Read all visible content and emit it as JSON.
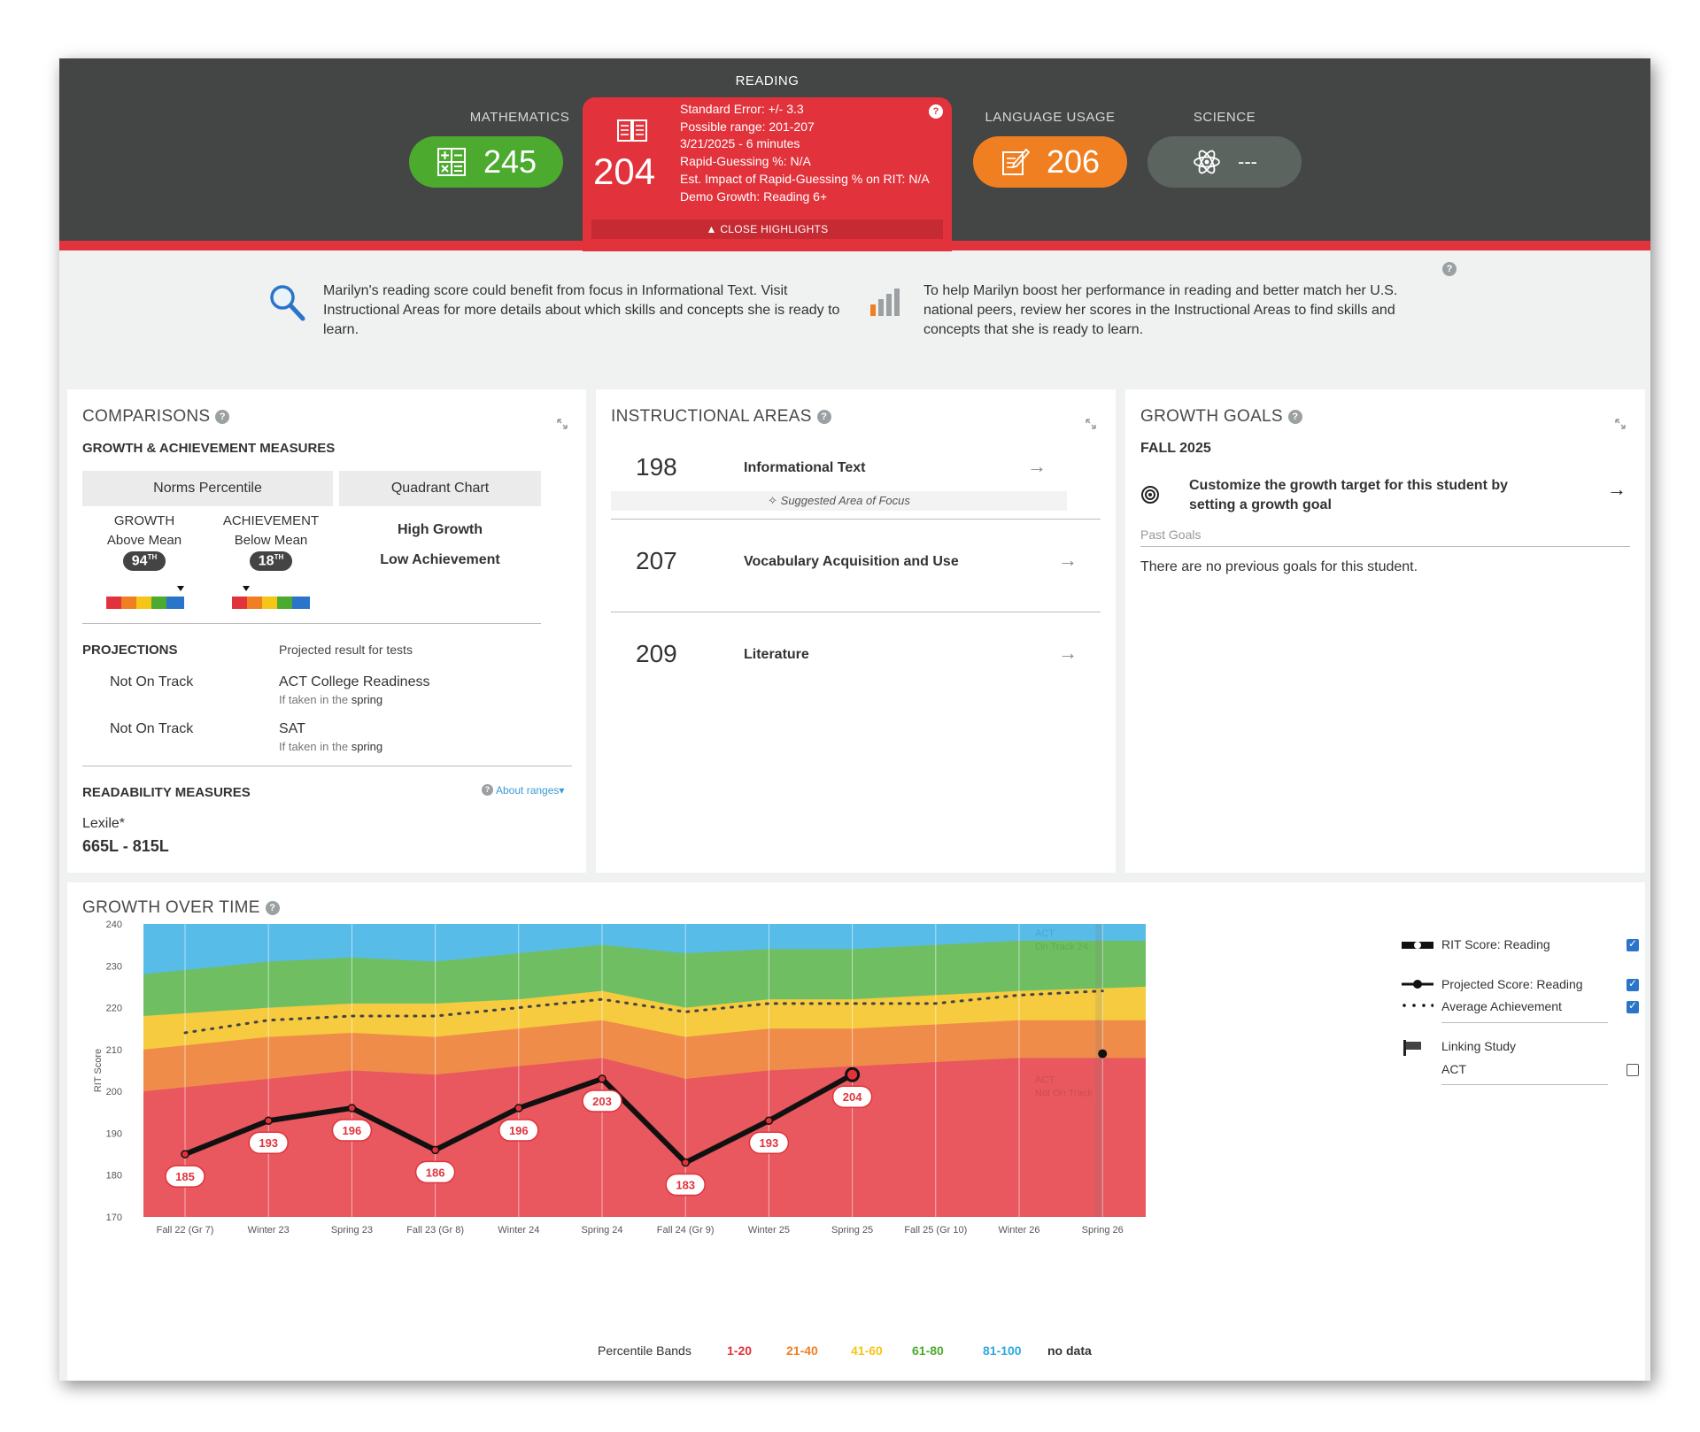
{
  "subjects": {
    "math": {
      "label": "MATHEMATICS",
      "score": "245",
      "color": "#4cab2e"
    },
    "reading": {
      "label": "READING",
      "score": "204",
      "details": [
        "Standard Error: +/- 3.3",
        "Possible range: 201-207",
        "3/21/2025 - 6 minutes",
        "Rapid-Guessing %: N/A",
        "Est. Impact of Rapid-Guessing % on RIT: N/A",
        "Demo Growth: Reading 6+"
      ],
      "close_label": "▲ CLOSE HIGHLIGHTS",
      "color": "#e2333c"
    },
    "language": {
      "label": "LANGUAGE USAGE",
      "score": "206",
      "color": "#f07f22"
    },
    "science": {
      "label": "SCIENCE",
      "score": "---",
      "color": "#5c6460"
    }
  },
  "insights": {
    "left": "Marilyn's reading score could benefit from focus in Informational Text. Visit Instructional Areas for more details about which skills and concepts she is ready to learn.",
    "right": "To help Marilyn boost her performance in reading and better match her U.S. national peers, review her scores in the Instructional Areas to find skills and concepts that she is ready to learn."
  },
  "comparisons": {
    "title": "COMPARISONS",
    "section_title": "GROWTH & ACHIEVEMENT MEASURES",
    "tab_norms": "Norms Percentile",
    "tab_quadrant": "Quadrant Chart",
    "growth_label": "GROWTH",
    "growth_desc": "Above Mean",
    "growth_pct": "94",
    "growth_sup": "TH",
    "achievement_label": "ACHIEVEMENT",
    "achievement_desc": "Below Mean",
    "achievement_pct": "18",
    "achievement_sup": "TH",
    "quadrant_line1": "High Growth",
    "quadrant_line2": "Low Achievement",
    "projections_title": "PROJECTIONS",
    "projections_sub": "Projected result for tests",
    "projections": [
      {
        "status": "Not On Track",
        "test": "ACT College Readiness",
        "note_pre": "If taken in the",
        "note_season": "spring"
      },
      {
        "status": "Not On Track",
        "test": "SAT",
        "note_pre": "If taken in the",
        "note_season": "spring"
      }
    ],
    "readability_title": "READABILITY MEASURES",
    "about_ranges": "About ranges▾",
    "lexile_label": "Lexile*",
    "lexile_range": "665L - 815L"
  },
  "instructional": {
    "title": "INSTRUCTIONAL AREAS",
    "areas": [
      {
        "score": "198",
        "name": "Informational Text"
      },
      {
        "score": "207",
        "name": "Vocabulary Acquisition and Use"
      },
      {
        "score": "209",
        "name": "Literature"
      }
    ],
    "focus_note": "Suggested Area of Focus"
  },
  "goals": {
    "title": "GROWTH GOALS",
    "term": "FALL 2025",
    "customize_text": "Customize the growth target for this student by setting a growth goal",
    "past_goals": "Past Goals",
    "empty_text": "There are no previous goals for this student."
  },
  "growth": {
    "title": "GROWTH OVER TIME",
    "ylabel": "RIT Score",
    "legend": {
      "rit": "RIT Score: Reading",
      "projected": "Projected Score: Reading",
      "average": "Average Achievement",
      "linking": "Linking Study",
      "act": "ACT"
    },
    "bands_label": "Percentile Bands",
    "bands": [
      {
        "label": "1-20",
        "color": "#e2333c"
      },
      {
        "label": "21-40",
        "color": "#f07f22"
      },
      {
        "label": "41-60",
        "color": "#f5c518"
      },
      {
        "label": "61-80",
        "color": "#4cab2e"
      },
      {
        "label": "81-100",
        "color": "#2fa9e0"
      },
      {
        "label": "no data",
        "color": "#333333"
      }
    ],
    "act_on_track": [
      "ACT",
      "On Track 24"
    ],
    "act_not_on_track": [
      "ACT",
      "Not On Track"
    ]
  },
  "chart_data": {
    "type": "line",
    "title": "GROWTH OVER TIME",
    "xlabel": "",
    "ylabel": "RIT Score",
    "ylim": [
      170,
      240
    ],
    "yticks": [
      170,
      180,
      190,
      200,
      210,
      220,
      230,
      240
    ],
    "categories": [
      "Fall 22 (Gr 7)",
      "Winter 23",
      "Spring 23",
      "Fall 23 (Gr 8)",
      "Winter 24",
      "Spring 24",
      "Fall 24 (Gr 9)",
      "Winter 25",
      "Spring 25",
      "Fall 25 (Gr 10)",
      "Winter 26",
      "Spring 26"
    ],
    "series": [
      {
        "name": "RIT Score: Reading",
        "values": [
          185,
          193,
          196,
          186,
          196,
          203,
          183,
          193,
          204,
          null,
          null,
          null
        ]
      },
      {
        "name": "Average Achievement",
        "values": [
          214,
          217,
          218,
          218,
          220,
          222,
          219,
          221,
          221,
          221,
          223,
          224
        ]
      },
      {
        "name": "Projected Score: Reading",
        "values": [
          null,
          null,
          null,
          null,
          null,
          null,
          null,
          null,
          null,
          null,
          null,
          209
        ]
      }
    ],
    "bands": {
      "p20": [
        200,
        203,
        205,
        204,
        206,
        208,
        203,
        205,
        206,
        207,
        208,
        208
      ],
      "p40": [
        210,
        213,
        214,
        213,
        215,
        217,
        213,
        215,
        215,
        216,
        217,
        217
      ],
      "p60": [
        218,
        220,
        221,
        221,
        222,
        224,
        220,
        222,
        222,
        223,
        224,
        225
      ],
      "p80": [
        228,
        231,
        232,
        231,
        233,
        235,
        233,
        234,
        234,
        235,
        236,
        236
      ],
      "p100": [
        240,
        240,
        240,
        240,
        240,
        240,
        240,
        240,
        240,
        240,
        240,
        240
      ]
    },
    "legend": "right",
    "grid": true
  }
}
